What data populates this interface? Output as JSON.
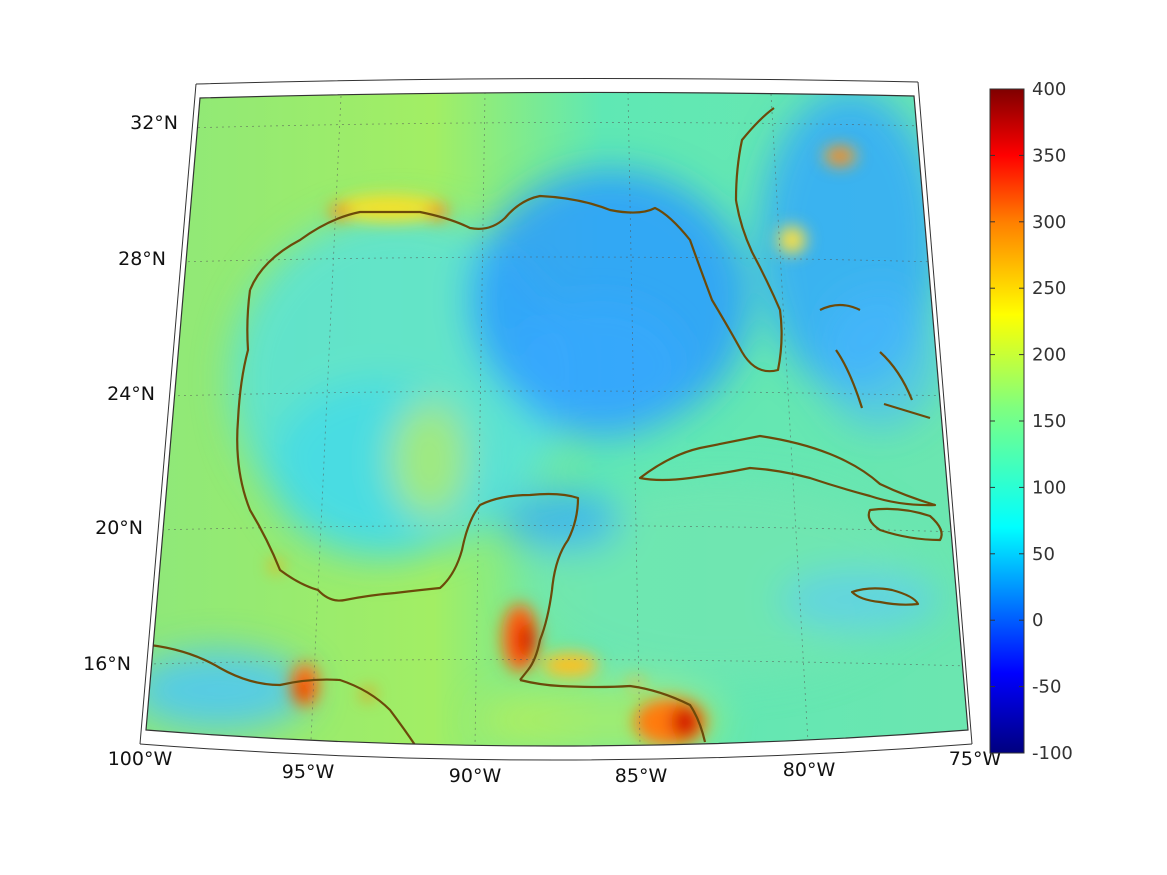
{
  "map": {
    "projection": "conic",
    "lon_range": [
      -100,
      -75
    ],
    "lat_range": [
      14.5,
      32.5
    ],
    "graticule": "dotted",
    "lat_labels": [
      "32°N",
      "28°N",
      "24°N",
      "20°N",
      "16°N"
    ],
    "lon_labels": [
      "100°W",
      "95°W",
      "90°W",
      "85°W",
      "80°W",
      "75°W"
    ],
    "coastline_color": "#6b4a0a",
    "field_colormap": "jet"
  },
  "colorbar": {
    "colormap": "jet",
    "min": -100,
    "max": 400,
    "tick_labels": [
      "400",
      "350",
      "300",
      "250",
      "200",
      "150",
      "100",
      "50",
      "0",
      "-50",
      "-100"
    ]
  }
}
